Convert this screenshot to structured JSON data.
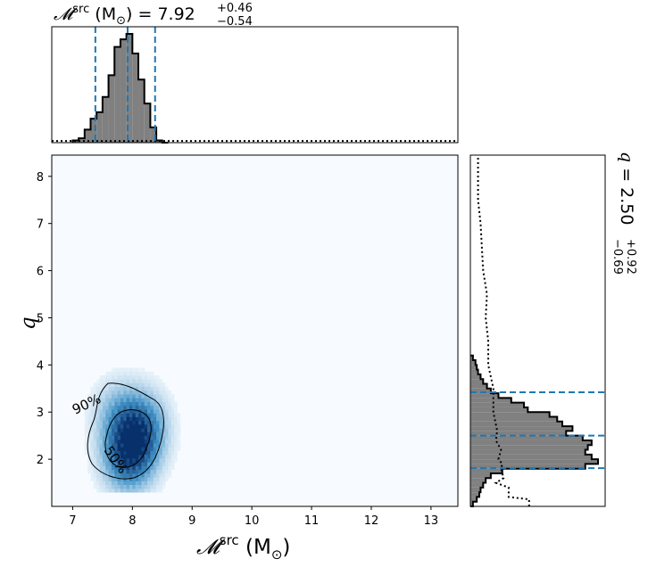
{
  "chart_data": {
    "type": "corner",
    "colors": {
      "hist_fill": "#808080",
      "quantile_line": "#1f77b4",
      "density_low": "#f7fbff",
      "density_high": "#08306b",
      "contour": "#000000"
    },
    "x_axis": {
      "label": "𝓜",
      "label_sup": "src",
      "label_unit": " (M",
      "label_unit_sub": "⊙",
      "label_close": ")",
      "range": [
        6.65,
        13.45
      ],
      "ticks": [
        "7",
        "8",
        "9",
        "10",
        "11",
        "12",
        "13"
      ]
    },
    "y_axis": {
      "label": "q",
      "range": [
        1.0,
        8.45
      ],
      "ticks": [
        "2",
        "3",
        "4",
        "5",
        "6",
        "7",
        "8"
      ]
    },
    "top_title": {
      "text": "𝓜",
      "sup": "src",
      "unit": " (M",
      "unit_sub": "⊙",
      "value": ") = 7.92",
      "plus": "+0.46",
      "minus": "−0.54"
    },
    "right_title": {
      "text": "q = 2.50",
      "plus": "+0.92",
      "minus": "−0.69"
    },
    "contour_labels": [
      "90%",
      "50%"
    ],
    "chirp_mass": {
      "median": 7.92,
      "low": 7.38,
      "high": 8.38,
      "bins": [
        7.05,
        7.15,
        7.25,
        7.35,
        7.45,
        7.55,
        7.65,
        7.75,
        7.85,
        7.95,
        8.05,
        8.15,
        8.25,
        8.35,
        8.45,
        8.55
      ],
      "counts": [
        0.02,
        0.04,
        0.12,
        0.22,
        0.28,
        0.42,
        0.62,
        0.88,
        0.95,
        1.0,
        0.82,
        0.58,
        0.36,
        0.14,
        0.02,
        0.0
      ],
      "prior_level": 0.015
    },
    "mass_ratio": {
      "median": 2.5,
      "low": 1.81,
      "high": 3.42,
      "bins": [
        1.05,
        1.15,
        1.25,
        1.35,
        1.45,
        1.55,
        1.65,
        1.75,
        1.85,
        1.95,
        2.05,
        2.15,
        2.25,
        2.35,
        2.45,
        2.55,
        2.65,
        2.75,
        2.85,
        2.95,
        3.05,
        3.15,
        3.25,
        3.35,
        3.45,
        3.55,
        3.65,
        3.75,
        3.85,
        3.95,
        4.05,
        4.15
      ],
      "counts": [
        0.02,
        0.05,
        0.07,
        0.08,
        0.1,
        0.12,
        0.16,
        0.25,
        0.9,
        1.0,
        0.95,
        0.9,
        0.92,
        0.95,
        0.88,
        0.75,
        0.8,
        0.72,
        0.68,
        0.62,
        0.45,
        0.42,
        0.32,
        0.22,
        0.16,
        0.13,
        0.1,
        0.08,
        0.06,
        0.05,
        0.04,
        0.02
      ],
      "prior": [
        {
          "q": 1.0,
          "v": 0.46
        },
        {
          "q": 1.15,
          "v": 0.46
        },
        {
          "q": 1.2,
          "v": 0.3
        },
        {
          "q": 1.4,
          "v": 0.3
        },
        {
          "q": 1.5,
          "v": 0.2
        },
        {
          "q": 1.6,
          "v": 0.26
        },
        {
          "q": 1.8,
          "v": 0.24
        },
        {
          "q": 1.9,
          "v": 0.25
        },
        {
          "q": 2.0,
          "v": 0.22
        },
        {
          "q": 2.2,
          "v": 0.24
        },
        {
          "q": 2.4,
          "v": 0.2
        },
        {
          "q": 2.6,
          "v": 0.21
        },
        {
          "q": 3.0,
          "v": 0.18
        },
        {
          "q": 3.5,
          "v": 0.18
        },
        {
          "q": 4.0,
          "v": 0.14
        },
        {
          "q": 4.5,
          "v": 0.14
        },
        {
          "q": 5.0,
          "v": 0.12
        },
        {
          "q": 5.5,
          "v": 0.13
        },
        {
          "q": 6.0,
          "v": 0.1
        },
        {
          "q": 6.5,
          "v": 0.09
        },
        {
          "q": 7.0,
          "v": 0.08
        },
        {
          "q": 7.5,
          "v": 0.06
        },
        {
          "q": 8.0,
          "v": 0.06
        },
        {
          "q": 8.45,
          "v": 0.06
        }
      ]
    },
    "density": {
      "center": [
        7.95,
        2.25
      ],
      "sigma": [
        0.28,
        0.48
      ],
      "blobs": [
        {
          "x": 7.9,
          "y": 2.0,
          "w": 1.0
        },
        {
          "x": 8.05,
          "y": 2.4,
          "w": 0.7
        },
        {
          "x": 7.75,
          "y": 2.9,
          "w": 0.45
        },
        {
          "x": 8.15,
          "y": 2.75,
          "w": 0.5
        }
      ]
    }
  }
}
